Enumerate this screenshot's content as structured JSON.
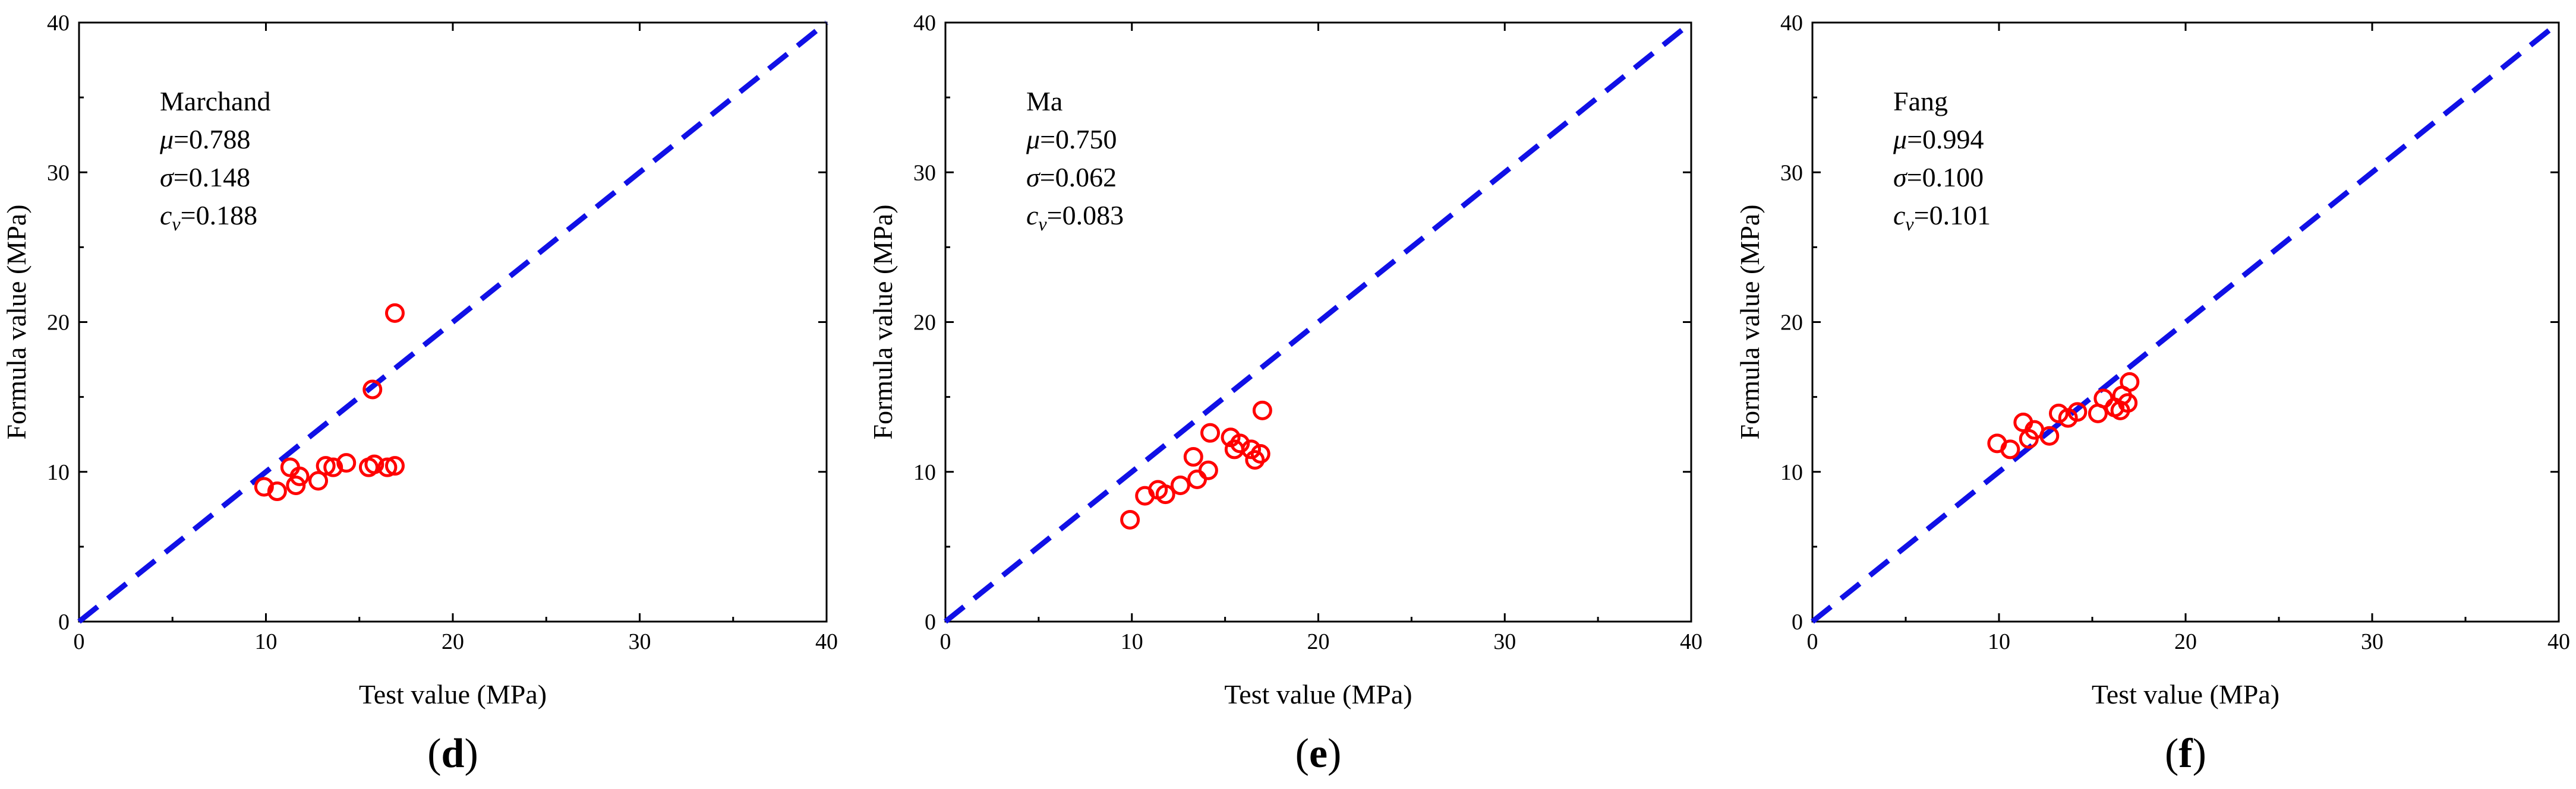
{
  "chart_data": [
    {
      "type": "scatter",
      "panel": "d",
      "method": "Marchand",
      "stats": [
        {
          "symbol": "μ",
          "sub": "",
          "value": "=0.788"
        },
        {
          "symbol": "σ",
          "sub": "",
          "value": "=0.148"
        },
        {
          "symbol": "c",
          "sub": "v",
          "value": "=0.188"
        }
      ],
      "xlabel": "Test value (MPa)",
      "ylabel": "Formula value (MPa)",
      "xlim": [
        0,
        40
      ],
      "ylim": [
        0,
        40
      ],
      "ticks": [
        0,
        10,
        20,
        30,
        40
      ],
      "reference_line": {
        "from": [
          0,
          0
        ],
        "to": [
          40,
          40
        ],
        "style": "dashed",
        "color": "#1010e6"
      },
      "points": [
        [
          9.9,
          9.0
        ],
        [
          10.6,
          8.7
        ],
        [
          11.3,
          10.3
        ],
        [
          11.8,
          9.7
        ],
        [
          11.6,
          9.1
        ],
        [
          12.8,
          9.4
        ],
        [
          13.2,
          10.4
        ],
        [
          13.6,
          10.3
        ],
        [
          14.3,
          10.6
        ],
        [
          15.5,
          10.3
        ],
        [
          15.8,
          10.5
        ],
        [
          15.7,
          15.5
        ],
        [
          16.5,
          10.3
        ],
        [
          16.9,
          10.4
        ],
        [
          16.9,
          20.6
        ]
      ],
      "marker_color": "#ff0000"
    },
    {
      "type": "scatter",
      "panel": "e",
      "method": "Ma",
      "stats": [
        {
          "symbol": "μ",
          "sub": "",
          "value": "=0.750"
        },
        {
          "symbol": "σ",
          "sub": "",
          "value": "=0.062"
        },
        {
          "symbol": "c",
          "sub": "v",
          "value": "=0.083"
        }
      ],
      "xlabel": "Test value (MPa)",
      "ylabel": "Formula value (MPa)",
      "xlim": [
        0,
        40
      ],
      "ylim": [
        0,
        40
      ],
      "ticks": [
        0,
        10,
        20,
        30,
        40
      ],
      "reference_line": {
        "from": [
          0,
          0
        ],
        "to": [
          40,
          40
        ],
        "style": "dashed",
        "color": "#1010e6"
      },
      "points": [
        [
          9.9,
          6.8
        ],
        [
          10.7,
          8.4
        ],
        [
          11.4,
          8.8
        ],
        [
          11.8,
          8.5
        ],
        [
          12.6,
          9.1
        ],
        [
          13.3,
          11.0
        ],
        [
          13.5,
          9.5
        ],
        [
          14.1,
          10.1
        ],
        [
          14.2,
          12.6
        ],
        [
          15.3,
          12.3
        ],
        [
          15.5,
          11.5
        ],
        [
          15.8,
          11.9
        ],
        [
          16.4,
          11.5
        ],
        [
          16.6,
          10.8
        ],
        [
          16.9,
          11.2
        ],
        [
          17.0,
          14.1
        ]
      ],
      "marker_color": "#ff0000"
    },
    {
      "type": "scatter",
      "panel": "f",
      "method": "Fang",
      "stats": [
        {
          "symbol": "μ",
          "sub": "",
          "value": "=0.994"
        },
        {
          "symbol": "σ",
          "sub": "",
          "value": "=0.100"
        },
        {
          "symbol": "c",
          "sub": "v",
          "value": "=0.101"
        }
      ],
      "xlabel": "Test value (MPa)",
      "ylabel": "Formula value (MPa)",
      "xlim": [
        0,
        40
      ],
      "ylim": [
        0,
        40
      ],
      "ticks": [
        0,
        10,
        20,
        30,
        40
      ],
      "reference_line": {
        "from": [
          0,
          0
        ],
        "to": [
          40,
          40
        ],
        "style": "dashed",
        "color": "#1010e6"
      },
      "points": [
        [
          9.9,
          11.9
        ],
        [
          10.6,
          11.5
        ],
        [
          11.3,
          13.3
        ],
        [
          11.6,
          12.2
        ],
        [
          11.9,
          12.8
        ],
        [
          12.7,
          12.4
        ],
        [
          13.2,
          13.9
        ],
        [
          13.7,
          13.6
        ],
        [
          14.2,
          14.0
        ],
        [
          15.3,
          13.9
        ],
        [
          15.6,
          14.9
        ],
        [
          16.2,
          14.3
        ],
        [
          16.5,
          14.1
        ],
        [
          16.6,
          15.1
        ],
        [
          16.9,
          14.6
        ],
        [
          17.0,
          16.0
        ]
      ],
      "marker_color": "#ff0000"
    }
  ]
}
